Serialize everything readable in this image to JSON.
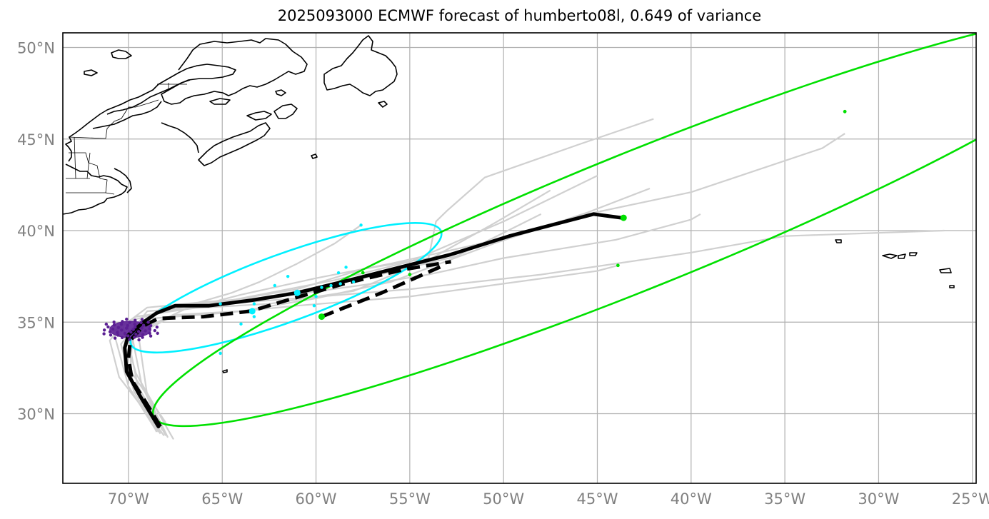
{
  "title": "2025093000 ECMWF forecast of humberto08l, 0.649 of variance",
  "colors": {
    "grid": "#b0b0b0",
    "ensemble": "#d0d0d0",
    "mean_track": "#000000",
    "cyan": "#00f0ff",
    "green": "#00e000",
    "purple": "#5b1f93",
    "tick_label": "#808080"
  },
  "axes": {
    "lat_labels": [
      "50°N",
      "45°N",
      "40°N",
      "35°N",
      "30°N"
    ],
    "lon_labels": [
      "70°W",
      "65°W",
      "60°W",
      "55°W",
      "50°W",
      "45°W",
      "40°W",
      "35°W",
      "30°W",
      "25°W"
    ]
  },
  "chart_data": {
    "type": "map",
    "projection": "plate carree",
    "lon_range": [
      -73.5,
      -24.8
    ],
    "lat_range": [
      26.2,
      50.8
    ],
    "gridlines": true,
    "lat_ticks": [
      50,
      45,
      40,
      35,
      30
    ],
    "lon_ticks": [
      -70,
      -65,
      -60,
      -55,
      -50,
      -45,
      -40,
      -35,
      -30,
      -25
    ],
    "mean_track": [
      [
        -68.4,
        29.3
      ],
      [
        -69.4,
        31.0
      ],
      [
        -70.1,
        32.3
      ],
      [
        -70.2,
        33.6
      ],
      [
        -70.0,
        34.3
      ],
      [
        -69.2,
        35.0
      ],
      [
        -68.5,
        35.5
      ],
      [
        -67.5,
        35.9
      ],
      [
        -65.7,
        35.9
      ],
      [
        -63.4,
        36.2
      ],
      [
        -61.0,
        36.6
      ],
      [
        -58.2,
        37.3
      ],
      [
        -55.5,
        38.0
      ],
      [
        -52.8,
        38.7
      ],
      [
        -49.7,
        39.7
      ],
      [
        -45.2,
        40.9
      ],
      [
        -43.7,
        40.7
      ]
    ],
    "dashed_track": [
      [
        -68.3,
        29.3
      ],
      [
        -69.0,
        30.5
      ],
      [
        -69.8,
        31.8
      ],
      [
        -70.0,
        33.0
      ],
      [
        -69.9,
        34.0
      ],
      [
        -69.2,
        34.8
      ],
      [
        -68.4,
        35.2
      ],
      [
        -66.0,
        35.3
      ],
      [
        -63.5,
        35.6
      ],
      [
        -61.2,
        36.3
      ],
      [
        -58.5,
        37.1
      ],
      [
        -55.2,
        37.9
      ],
      [
        -52.8,
        38.3
      ]
    ],
    "dashed_branch": [
      [
        -59.7,
        35.3
      ],
      [
        -56.5,
        36.6
      ],
      [
        -53.2,
        38.1
      ]
    ],
    "ensemble_tracks": [
      [
        [
          -68.0,
          28.8
        ],
        [
          -69.5,
          31.5
        ],
        [
          -70.0,
          34.0
        ],
        [
          -68.5,
          35.5
        ],
        [
          -65.5,
          35.9
        ],
        [
          -62.0,
          36.5
        ],
        [
          -57.0,
          37.5
        ],
        [
          -52.5,
          38.6
        ],
        [
          -48.0,
          40.9
        ]
      ],
      [
        [
          -68.3,
          28.9
        ],
        [
          -69.8,
          31.8
        ],
        [
          -70.0,
          34.5
        ],
        [
          -68.2,
          35.8
        ],
        [
          -64.5,
          36.2
        ],
        [
          -61.0,
          36.8
        ],
        [
          -57.5,
          37.9
        ],
        [
          -54.0,
          38.5
        ],
        [
          -53.6,
          40.5
        ],
        [
          -53.0,
          41.1
        ],
        [
          -51.0,
          42.9
        ],
        [
          -46.0,
          44.7
        ],
        [
          -42.0,
          46.1
        ]
      ],
      [
        [
          -67.9,
          28.7
        ],
        [
          -69.0,
          31.0
        ],
        [
          -69.5,
          34.5
        ],
        [
          -67.0,
          35.7
        ],
        [
          -63.0,
          36.5
        ],
        [
          -59.0,
          37.3
        ],
        [
          -55.0,
          38.3
        ],
        [
          -50.0,
          40.5
        ],
        [
          -45.0,
          43.0
        ]
      ],
      [
        [
          -68.2,
          29.1
        ],
        [
          -69.3,
          31.6
        ],
        [
          -69.8,
          34.2
        ],
        [
          -67.5,
          35.4
        ],
        [
          -64.0,
          35.6
        ],
        [
          -60.0,
          36.3
        ],
        [
          -56.0,
          37.2
        ],
        [
          -50.5,
          39.3
        ],
        [
          -45.5,
          41.0
        ],
        [
          -42.2,
          42.3
        ]
      ],
      [
        [
          -67.6,
          28.6
        ],
        [
          -69.6,
          32.2
        ],
        [
          -70.3,
          34.8
        ],
        [
          -69.0,
          35.8
        ],
        [
          -66.0,
          36.1
        ],
        [
          -62.0,
          36.4
        ],
        [
          -57.0,
          37.1
        ],
        [
          -54.0,
          37.6
        ],
        [
          -50.0,
          38.5
        ],
        [
          -44.0,
          39.5
        ],
        [
          -40.0,
          40.6
        ],
        [
          -39.5,
          40.9
        ]
      ],
      [
        [
          -68.5,
          29.0
        ],
        [
          -69.9,
          32.0
        ],
        [
          -69.8,
          34.3
        ],
        [
          -68.8,
          35.2
        ],
        [
          -65.0,
          35.5
        ],
        [
          -61.0,
          35.9
        ],
        [
          -55.0,
          36.4
        ],
        [
          -50.0,
          37.1
        ],
        [
          -45.0,
          37.8
        ],
        [
          -43.9,
          38.1
        ]
      ],
      [
        [
          -68.1,
          28.8
        ],
        [
          -70.5,
          32.0
        ],
        [
          -71.0,
          34.0
        ],
        [
          -70.2,
          35.0
        ],
        [
          -68.0,
          35.6
        ],
        [
          -65.0,
          36.0
        ],
        [
          -61.0,
          36.3
        ],
        [
          -55.0,
          36.8
        ],
        [
          -48.0,
          37.6
        ],
        [
          -40.0,
          38.8
        ],
        [
          -35.0,
          39.7
        ],
        [
          -26.5,
          40.0
        ]
      ],
      [
        [
          -68.6,
          29.2
        ],
        [
          -70.0,
          31.5
        ],
        [
          -70.8,
          34.5
        ],
        [
          -69.6,
          35.3
        ],
        [
          -67.0,
          35.7
        ],
        [
          -64.0,
          36.5
        ],
        [
          -60.0,
          37.4
        ],
        [
          -56.0,
          38.2
        ],
        [
          -52.5,
          39.0
        ],
        [
          -49.0,
          39.8
        ],
        [
          -46.0,
          40.8
        ],
        [
          -40.0,
          42.1
        ],
        [
          -33.0,
          44.5
        ],
        [
          -31.8,
          45.3
        ]
      ],
      [
        [
          -68.0,
          29.5
        ],
        [
          -70.0,
          32.5
        ],
        [
          -70.2,
          34.1
        ],
        [
          -68.8,
          35.4
        ],
        [
          -66.5,
          36.0
        ],
        [
          -64.5,
          36.6
        ],
        [
          -63.0,
          37.2
        ],
        [
          -61.0,
          38.2
        ],
        [
          -59.0,
          39.3
        ],
        [
          -57.6,
          40.3
        ]
      ],
      [
        [
          -68.4,
          29.0
        ],
        [
          -69.7,
          31.2
        ],
        [
          -70.4,
          33.8
        ],
        [
          -69.0,
          35.6
        ],
        [
          -66.0,
          35.8
        ],
        [
          -62.5,
          36.0
        ],
        [
          -58.0,
          36.7
        ],
        [
          -54.0,
          38.4
        ],
        [
          -50.5,
          40.4
        ],
        [
          -47.5,
          42.2
        ]
      ]
    ],
    "markers": {
      "green": [
        [
          -43.6,
          40.7
        ],
        [
          -59.7,
          35.3
        ],
        [
          -43.9,
          38.1
        ],
        [
          -55.0,
          37.6
        ],
        [
          -57.5,
          37.7
        ],
        [
          -31.8,
          46.5
        ]
      ],
      "cyan": [
        [
          -61.0,
          36.6
        ],
        [
          -63.4,
          35.6
        ],
        [
          -57.6,
          40.3
        ],
        [
          -61.5,
          37.5
        ],
        [
          -58.4,
          38.0
        ],
        [
          -58.8,
          37.7
        ],
        [
          -59.7,
          36.9
        ],
        [
          -62.2,
          37.0
        ],
        [
          -63.3,
          36.0
        ],
        [
          -65.1,
          36.0
        ],
        [
          -63.3,
          35.3
        ],
        [
          -64.0,
          34.9
        ],
        [
          -65.1,
          33.3
        ],
        [
          -60.0,
          36.4
        ],
        [
          -60.1,
          35.9
        ],
        [
          -59.2,
          37.0
        ],
        [
          -58.7,
          37.1
        ],
        [
          -58.0,
          37.2
        ]
      ],
      "purple_cluster_center": [
        -69.9,
        34.6
      ]
    },
    "ellipses": [
      {
        "color": "cyan",
        "center": [
          -61.6,
          36.88
        ],
        "semi_axes_deg": [
          8.8,
          1.85
        ],
        "angle_deg": 20
      },
      {
        "color": "green",
        "center": [
          -42.7,
          40.6
        ],
        "semi_axes_deg": [
          28.0,
          3.7
        ],
        "angle_deg": 22
      },
      {
        "color": "purple",
        "center": [
          -69.9,
          34.6
        ],
        "semi_axes_deg": [
          1.1,
          0.45
        ],
        "angle_deg": 0
      }
    ]
  }
}
